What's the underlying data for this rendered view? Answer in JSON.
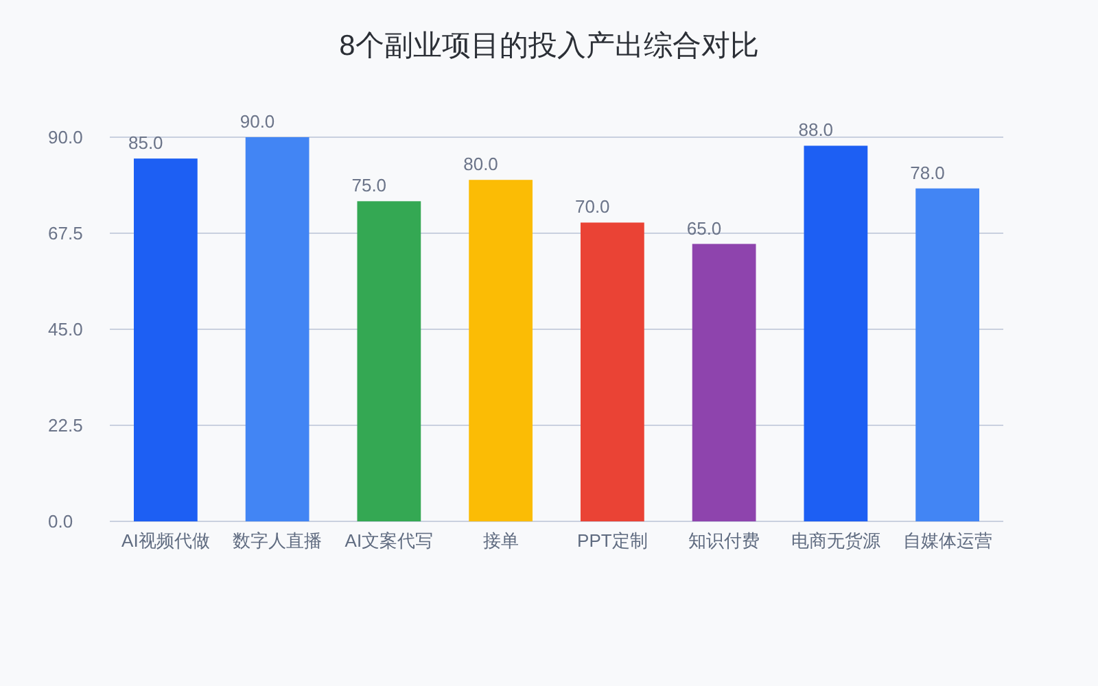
{
  "chart_data": {
    "type": "bar",
    "title": "8个副业项目的投入产出综合对比",
    "categories": [
      "AI视频代做",
      "数字人直播",
      "AI文案代写",
      "接单",
      "PPT定制",
      "知识付费",
      "电商无货源",
      "自媒体运营"
    ],
    "values": [
      85,
      90,
      75,
      80,
      70,
      65,
      88,
      78
    ],
    "value_labels": [
      "85.0",
      "90.0",
      "75.0",
      "80.0",
      "70.0",
      "65.0",
      "88.0",
      "78.0"
    ],
    "colors": [
      "#1d5ff3",
      "#4285f4",
      "#34a853",
      "#fbbc05",
      "#ea4335",
      "#8e44ad",
      "#1d5ff3",
      "#4285f4"
    ],
    "ylim": [
      0,
      90
    ],
    "yticks": [
      {
        "value": 0,
        "label": "0.0"
      },
      22.5,
      {
        "value": 45,
        "label": "45.0"
      },
      67.5,
      {
        "value": 90,
        "label": "90.0"
      }
    ],
    "grid": "y"
  }
}
